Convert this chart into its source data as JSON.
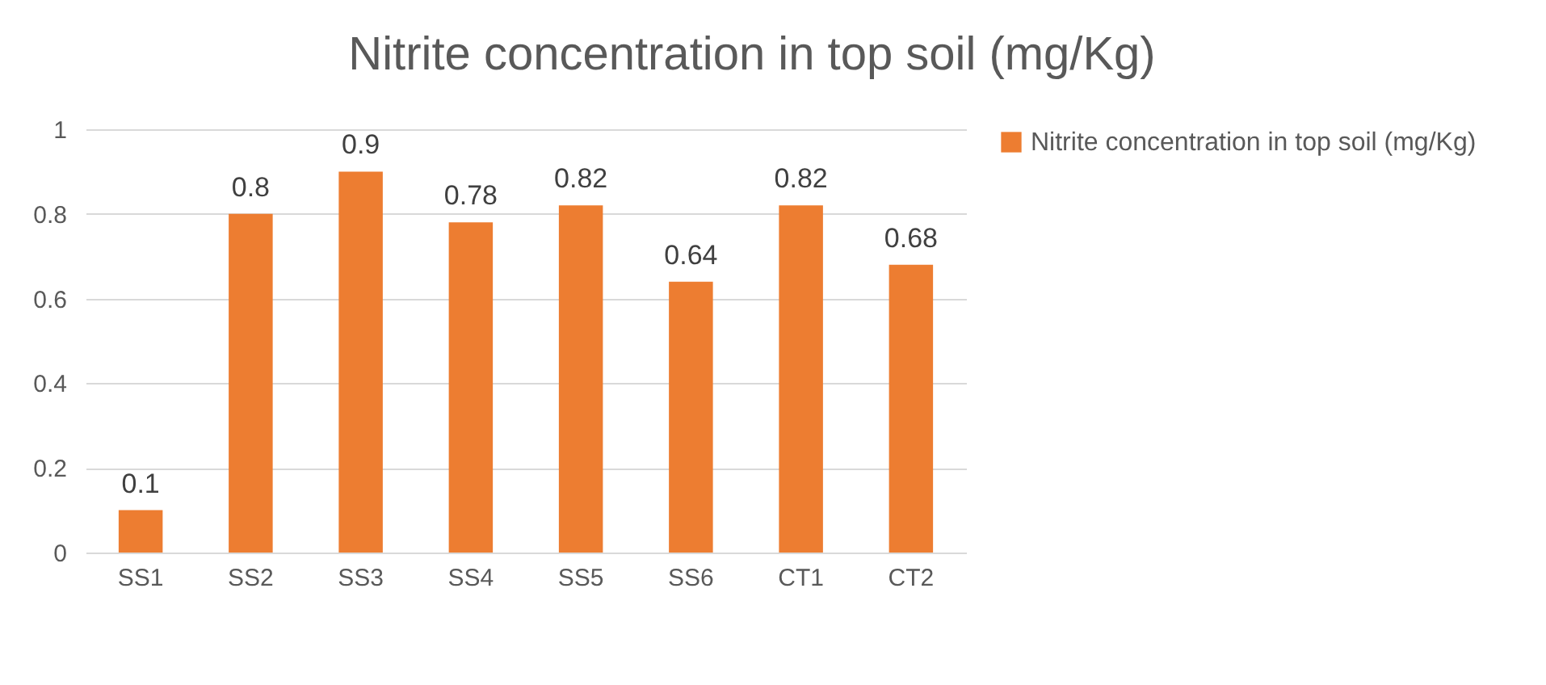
{
  "chart_data": {
    "type": "bar",
    "title": "Nitrite concentration in top soil (mg/Kg)",
    "categories": [
      "SS1",
      "SS2",
      "SS3",
      "SS4",
      "SS5",
      "SS6",
      "CT1",
      "CT2"
    ],
    "series": [
      {
        "name": "Nitrite concentration in top soil (mg/Kg)",
        "color": "#ed7d31",
        "values": [
          0.1,
          0.8,
          0.9,
          0.78,
          0.82,
          0.64,
          0.82,
          0.68
        ]
      }
    ],
    "ylim": [
      0,
      1
    ],
    "yticks": [
      0,
      0.2,
      0.4,
      0.6,
      0.8,
      1
    ],
    "grid": "y",
    "legend": "right",
    "data_labels": true
  }
}
